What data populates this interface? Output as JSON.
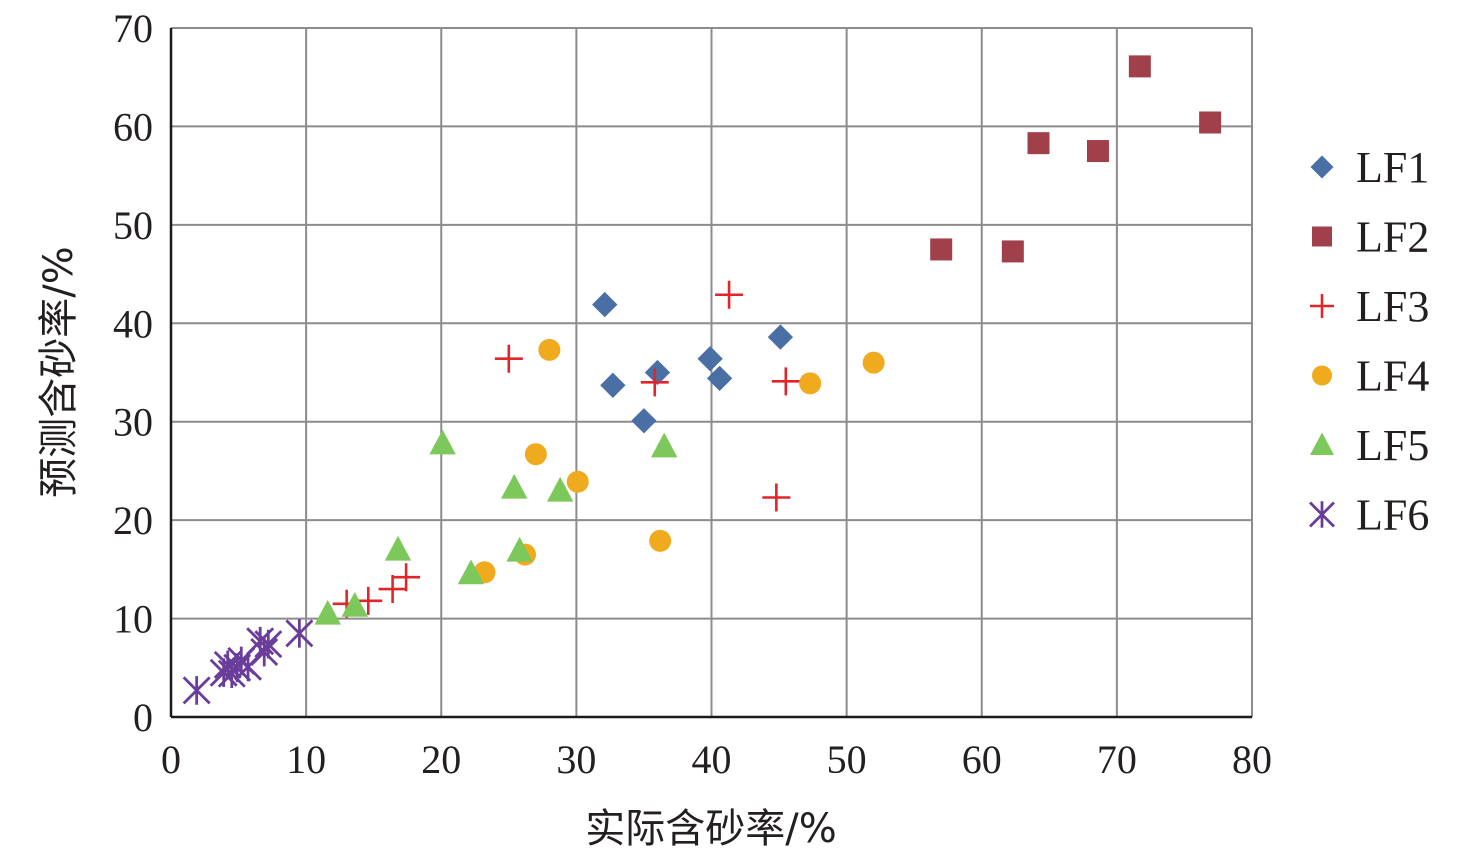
{
  "chart_data": {
    "type": "scatter",
    "xlabel": "实际含砂率/%",
    "ylabel": "预测含砂率/%",
    "xlim": [
      0,
      80
    ],
    "ylim": [
      0,
      70
    ],
    "xticks": [
      0,
      10,
      20,
      30,
      40,
      50,
      60,
      70,
      80
    ],
    "yticks": [
      0,
      10,
      20,
      30,
      40,
      50,
      60,
      70
    ],
    "grid": true,
    "legend_position": "right",
    "series": [
      {
        "name": "LF1",
        "marker": "diamond",
        "color": "#4a6fa5",
        "points": [
          [
            32.1,
            41.9
          ],
          [
            32.7,
            33.7
          ],
          [
            35.0,
            30.1
          ],
          [
            36.0,
            35.0
          ],
          [
            39.9,
            36.4
          ],
          [
            40.6,
            34.4
          ],
          [
            45.1,
            38.6
          ]
        ]
      },
      {
        "name": "LF2",
        "marker": "square",
        "color": "#a0404a",
        "points": [
          [
            57.0,
            47.5
          ],
          [
            62.3,
            47.3
          ],
          [
            64.2,
            58.3
          ],
          [
            68.6,
            57.5
          ],
          [
            71.7,
            66.1
          ],
          [
            76.9,
            60.4
          ]
        ]
      },
      {
        "name": "LF3",
        "marker": "plus",
        "color": "#e0262b",
        "points": [
          [
            13.0,
            11.5
          ],
          [
            14.6,
            11.8
          ],
          [
            16.4,
            13.0
          ],
          [
            17.4,
            14.2
          ],
          [
            25.0,
            36.4
          ],
          [
            35.8,
            34.0
          ],
          [
            41.3,
            42.9
          ],
          [
            44.8,
            22.3
          ],
          [
            45.5,
            34.1
          ]
        ]
      },
      {
        "name": "LF4",
        "marker": "circle",
        "color": "#f0aa1e",
        "points": [
          [
            23.2,
            14.7
          ],
          [
            26.2,
            16.5
          ],
          [
            27.0,
            26.7
          ],
          [
            28.0,
            37.3
          ],
          [
            30.1,
            23.9
          ],
          [
            36.2,
            17.9
          ],
          [
            47.3,
            33.9
          ],
          [
            52.0,
            36.0
          ]
        ]
      },
      {
        "name": "LF5",
        "marker": "triangle",
        "color": "#7dc85a",
        "points": [
          [
            11.6,
            10.5
          ],
          [
            13.6,
            11.3
          ],
          [
            16.8,
            17.0
          ],
          [
            20.1,
            27.8
          ],
          [
            22.2,
            14.6
          ],
          [
            25.4,
            23.3
          ],
          [
            25.8,
            16.9
          ],
          [
            28.8,
            23.0
          ],
          [
            36.5,
            27.5
          ]
        ]
      },
      {
        "name": "LF6",
        "marker": "asterisk",
        "color": "#6a3d9a",
        "points": [
          [
            1.9,
            2.7
          ],
          [
            3.9,
            4.5
          ],
          [
            4.2,
            5.3
          ],
          [
            4.5,
            4.4
          ],
          [
            4.9,
            5.0
          ],
          [
            5.2,
            5.7
          ],
          [
            5.7,
            5.1
          ],
          [
            6.6,
            7.7
          ],
          [
            6.9,
            6.6
          ],
          [
            7.2,
            7.4
          ],
          [
            9.5,
            8.5
          ]
        ]
      }
    ]
  }
}
